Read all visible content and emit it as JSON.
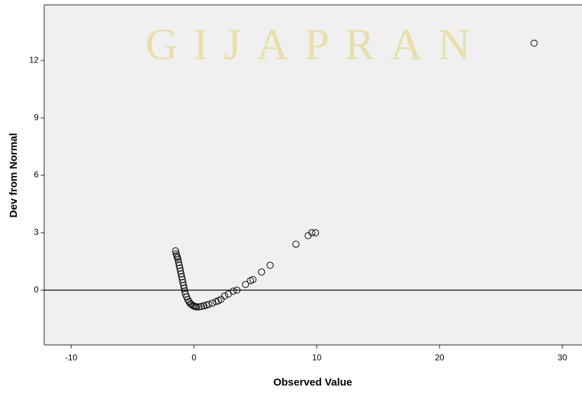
{
  "chart_data": {
    "type": "scatter",
    "watermark": "GIJAPRAN",
    "x_label": "Observed Value",
    "y_label": "Dev from Normal",
    "x": [
      -1.5,
      -1.45,
      -1.4,
      -1.35,
      -1.3,
      -1.25,
      -1.2,
      -1.15,
      -1.1,
      -1.05,
      -1.0,
      -0.95,
      -0.9,
      -0.85,
      -0.8,
      -0.75,
      -0.7,
      -0.6,
      -0.5,
      -0.4,
      -0.3,
      -0.2,
      -0.1,
      0,
      0.1,
      0.2,
      0.4,
      0.6,
      0.8,
      1.0,
      1.2,
      1.5,
      1.8,
      2.0,
      2.2,
      2.5,
      2.8,
      3.2,
      3.5,
      4.2,
      4.6,
      4.8,
      5.5,
      6.2,
      8.3,
      9.3,
      9.6,
      9.9,
      27.7
    ],
    "values": [
      2.05,
      1.9,
      1.8,
      1.7,
      1.6,
      1.45,
      1.3,
      1.15,
      1.0,
      0.85,
      0.7,
      0.55,
      0.4,
      0.25,
      0.1,
      -0.05,
      -0.2,
      -0.35,
      -0.5,
      -0.6,
      -0.7,
      -0.75,
      -0.8,
      -0.83,
      -0.86,
      -0.87,
      -0.87,
      -0.85,
      -0.82,
      -0.78,
      -0.74,
      -0.68,
      -0.6,
      -0.55,
      -0.48,
      -0.3,
      -0.2,
      -0.05,
      0,
      0.3,
      0.5,
      0.55,
      0.95,
      1.3,
      2.4,
      2.85,
      3.0,
      3.0,
      12.9
    ],
    "color": "#000000",
    "reference_line": 0,
    "xlim": [
      -12.2,
      31.6
    ],
    "xticks": [
      -10,
      0,
      10,
      20,
      30
    ],
    "ylim": [
      -2.86,
      14.9
    ],
    "yticks": [
      0,
      3,
      6,
      9,
      12
    ]
  }
}
